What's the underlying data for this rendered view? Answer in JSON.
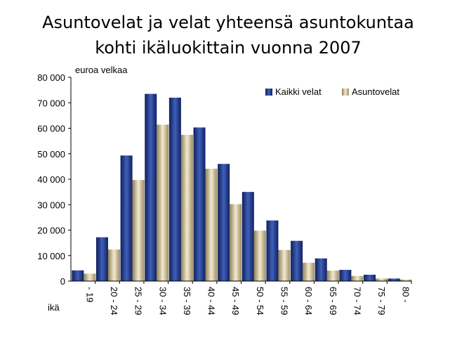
{
  "chart_data": {
    "type": "bar",
    "title_lines": [
      "Asuntovelat ja velat yhteensä asuntokuntaa",
      "kohti ikäluokittain vuonna 2007"
    ],
    "ylabel": "euroa velkaa",
    "xlabel": "ikä",
    "categories": [
      "- 19",
      "20 - 24",
      "25 - 29",
      "30 - 34",
      "35 - 39",
      "40 - 44",
      "45 - 49",
      "50 - 54",
      "55 - 59",
      "60 - 64",
      "65 - 69",
      "70 - 74",
      "75 - 79",
      "80 -"
    ],
    "series": [
      {
        "name": "Kaikki velat",
        "values": [
          4200,
          17200,
          49300,
          73500,
          72000,
          60300,
          46000,
          35000,
          23800,
          15800,
          8900,
          4400,
          2500,
          1000
        ]
      },
      {
        "name": "Asuntovelat",
        "values": [
          2900,
          12400,
          39700,
          61400,
          57400,
          44100,
          30200,
          19800,
          12200,
          7200,
          4100,
          2000,
          1000,
          600
        ]
      }
    ],
    "ylim": [
      0,
      80000
    ],
    "yticks": [
      0,
      10000,
      20000,
      30000,
      40000,
      50000,
      60000,
      70000,
      80000
    ],
    "ytick_labels": [
      "0",
      "10 000",
      "20 000",
      "30 000",
      "40 000",
      "50 000",
      "60 000",
      "70 000",
      "80 000"
    ],
    "legend_position": "top-right",
    "colors": {
      "Kaikki velat": "#1f3a8c",
      "Asuntovelat": "#d8c89a"
    }
  }
}
